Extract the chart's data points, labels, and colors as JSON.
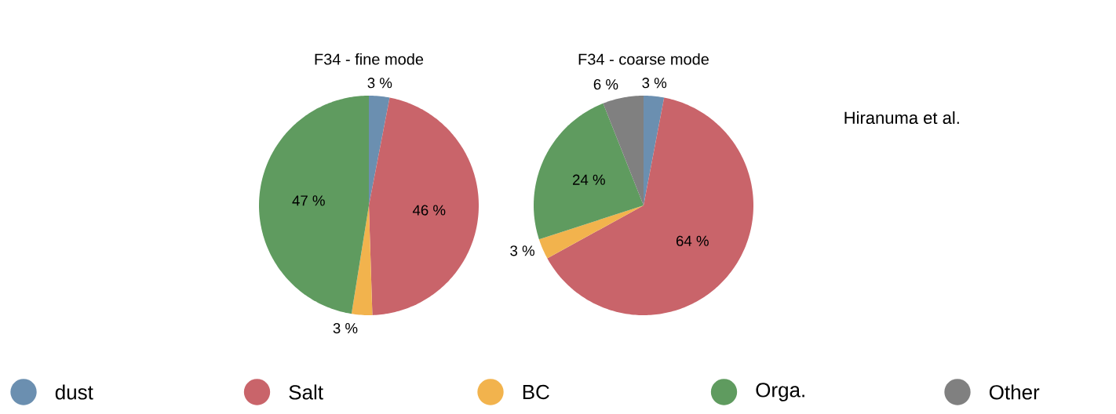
{
  "chart_data": [
    {
      "type": "pie",
      "title": "F34 - fine mode",
      "categories": [
        null,
        null,
        null,
        null
      ],
      "values": [
        3,
        46,
        3,
        47
      ],
      "colors": [
        "#6b8fb0",
        "#c9646a",
        "#f2b34d",
        "#5f9b5f"
      ],
      "value_labels": [
        "3 %",
        "46 %",
        "3 %",
        "47 %"
      ]
    },
    {
      "type": "pie",
      "title": "F34 - coarse mode",
      "categories": [
        "dust",
        "Salt",
        "BC",
        "Orga.",
        "Other"
      ],
      "values": [
        3,
        64,
        3,
        24,
        6
      ],
      "colors": [
        "#6b8fb0",
        "#c9646a",
        "#f2b34d",
        "#5f9b5f",
        "#808080"
      ],
      "value_labels": [
        "3 %",
        "64 %",
        "3 %",
        "24 %",
        "6 %"
      ],
      "legend": "bottom",
      "annotations": [
        "Hiranuma et al."
      ]
    }
  ]
}
